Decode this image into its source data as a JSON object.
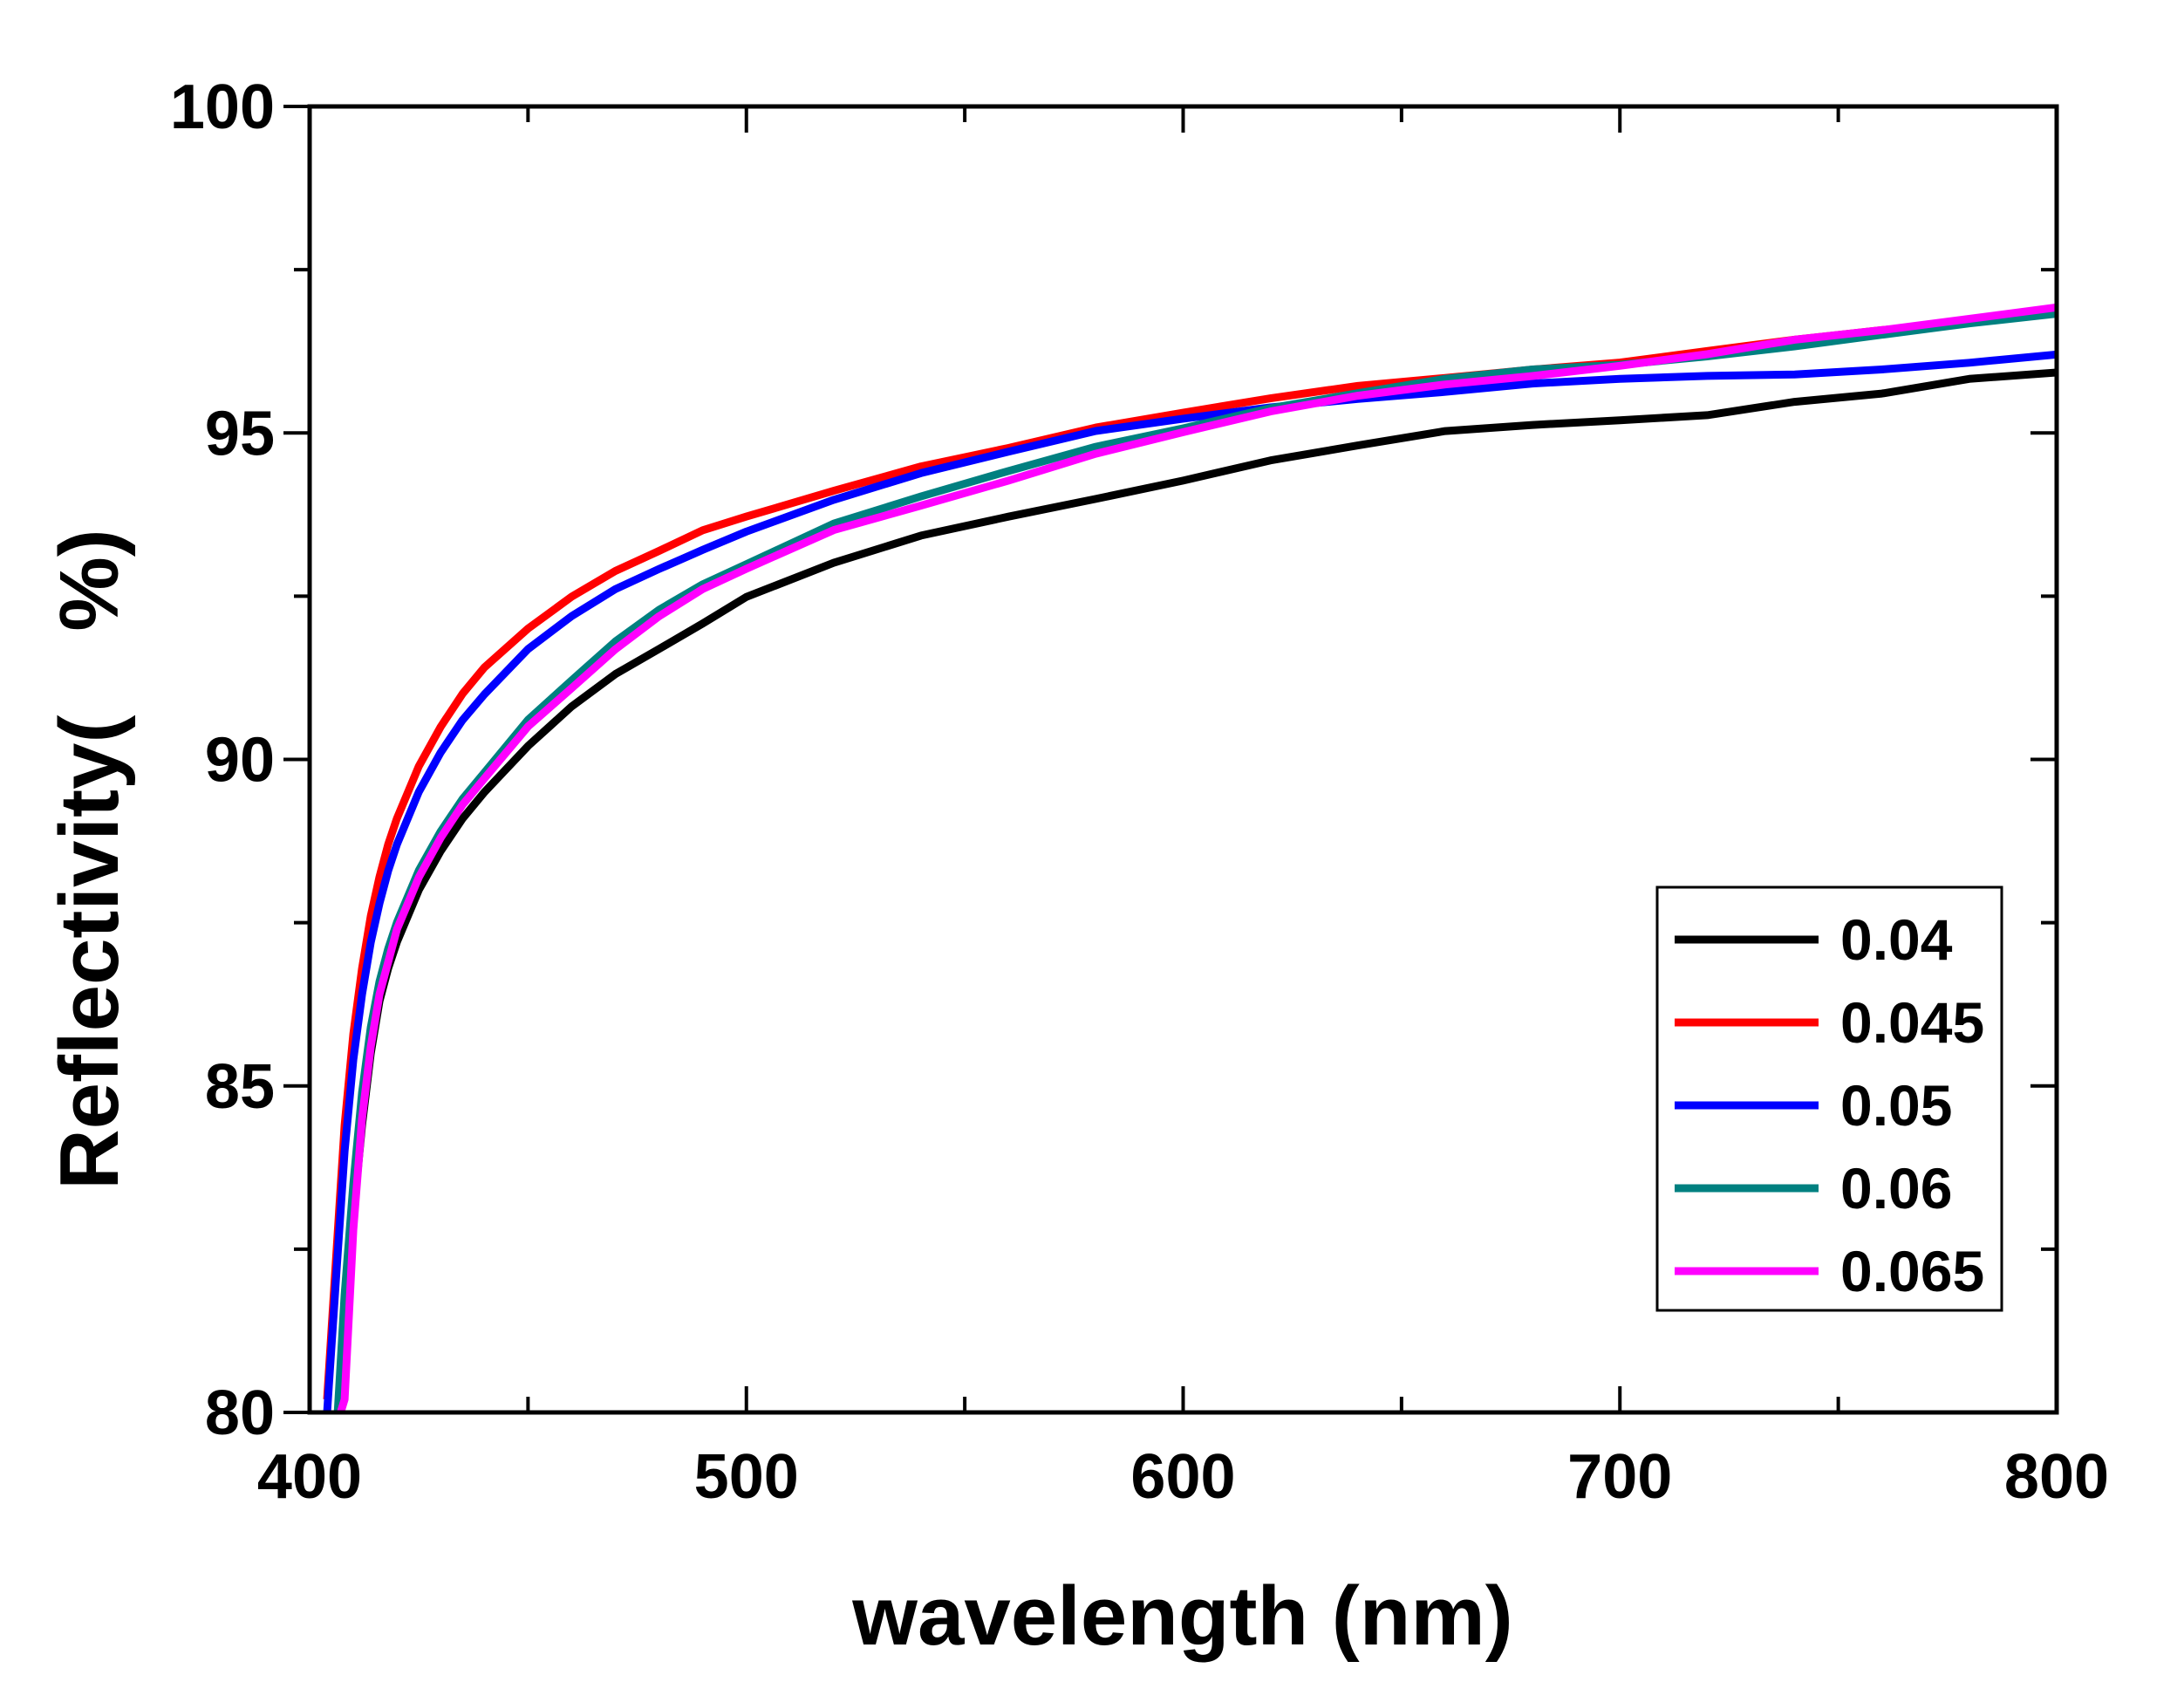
{
  "chart_data": {
    "type": "line",
    "title": "",
    "xlabel": "wavelength (nm)",
    "ylabel": "Reflectivity(　%)",
    "xlim": [
      400,
      800
    ],
    "ylim": [
      80,
      100
    ],
    "xticks": [
      "400",
      "500",
      "600",
      "700",
      "800"
    ],
    "yticks": [
      "80",
      "85",
      "90",
      "95",
      "100"
    ],
    "legend_position": "bottom-right",
    "x": [
      404,
      406,
      408,
      410,
      412,
      414,
      416,
      418,
      420,
      425,
      430,
      435,
      440,
      450,
      460,
      470,
      480,
      490,
      500,
      520,
      540,
      560,
      580,
      600,
      620,
      640,
      660,
      680,
      700,
      720,
      740,
      760,
      780,
      800
    ],
    "series": [
      {
        "name": "0.04",
        "color": "#000000",
        "values": [
          null,
          79.6,
          81.2,
          83.0,
          84.4,
          85.5,
          86.3,
          86.8,
          87.2,
          88.0,
          88.6,
          89.1,
          89.5,
          90.2,
          90.8,
          91.3,
          91.7,
          92.1,
          92.5,
          93.0,
          93.4,
          93.7,
          94.0,
          94.3,
          94.6,
          94.8,
          95.0,
          95.1,
          95.2,
          95.3,
          95.5,
          95.6,
          95.8,
          95.9
        ]
      },
      {
        "name": "0.045",
        "color": "#ff0000",
        "values": [
          80.2,
          82.3,
          84.4,
          85.8,
          86.8,
          87.6,
          88.2,
          88.7,
          89.1,
          89.9,
          90.5,
          91.0,
          91.4,
          92.0,
          92.5,
          92.9,
          93.2,
          93.5,
          93.7,
          94.1,
          94.5,
          94.8,
          95.1,
          95.3,
          95.5,
          95.7,
          95.85,
          96.0,
          96.1,
          96.25,
          96.4,
          96.55,
          96.7,
          96.9
        ]
      },
      {
        "name": "0.05",
        "color": "#0000ff",
        "values": [
          80.0,
          82.0,
          84.0,
          85.4,
          86.4,
          87.2,
          87.8,
          88.3,
          88.7,
          89.5,
          90.1,
          90.6,
          91.0,
          91.7,
          92.2,
          92.6,
          92.9,
          93.2,
          93.5,
          94.0,
          94.4,
          94.7,
          95.0,
          95.2,
          95.4,
          95.55,
          95.65,
          95.75,
          95.8,
          95.85,
          95.9,
          96.0,
          96.1,
          96.2
        ]
      },
      {
        "name": "0.06",
        "color": "#008080",
        "values": [
          null,
          79.5,
          81.8,
          83.5,
          84.9,
          85.9,
          86.6,
          87.1,
          87.5,
          88.3,
          88.9,
          89.4,
          89.8,
          90.6,
          91.2,
          91.8,
          92.3,
          92.7,
          93.0,
          93.6,
          94.0,
          94.4,
          94.8,
          95.1,
          95.4,
          95.6,
          95.8,
          95.95,
          96.05,
          96.2,
          96.35,
          96.5,
          96.65,
          96.8
        ]
      },
      {
        "name": "0.065",
        "color": "#ff00ff",
        "values": [
          null,
          null,
          80.2,
          82.8,
          84.5,
          85.6,
          86.4,
          86.9,
          87.4,
          88.2,
          88.8,
          89.3,
          89.7,
          90.5,
          91.1,
          91.7,
          92.2,
          92.6,
          92.9,
          93.5,
          93.9,
          94.3,
          94.7,
          95.0,
          95.3,
          95.55,
          95.75,
          95.9,
          96.05,
          96.2,
          96.4,
          96.55,
          96.75,
          96.95
        ]
      }
    ]
  }
}
